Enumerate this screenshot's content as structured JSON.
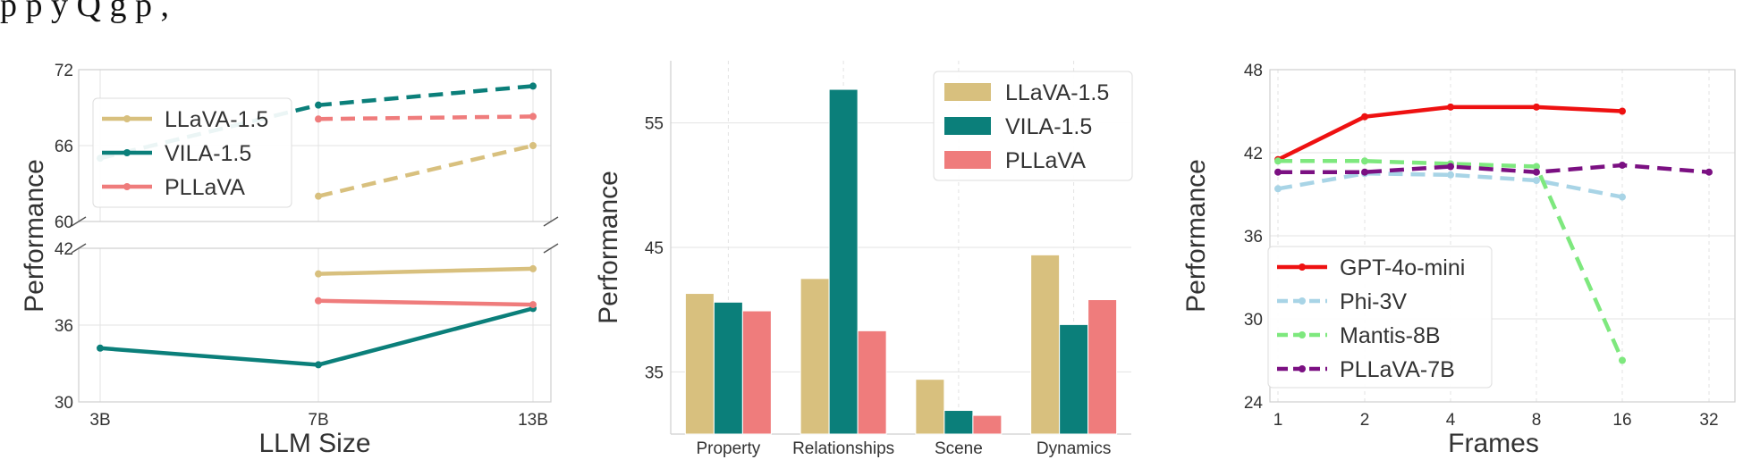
{
  "header_text": "p                p      y                      Q                          g                     p          ,",
  "chart_data": [
    {
      "type": "line",
      "title": "",
      "xlabel": "LLM Size",
      "ylabel": "Performance",
      "categories": [
        "3B",
        "7B",
        "13B"
      ],
      "broken_axis": true,
      "ylim_top": [
        60,
        72
      ],
      "ylim_bottom": [
        30,
        42
      ],
      "yticks_top": [
        "72",
        "66",
        "60"
      ],
      "yticks_bottom": [
        "42",
        "36",
        "30"
      ],
      "legend_position": "upper-left",
      "grid": true,
      "series": [
        {
          "name": "LLaVA-1.5",
          "color": "#d8c07e",
          "solid_values": [
            null,
            40.0,
            40.4
          ],
          "dashed_values": [
            null,
            62.0,
            66.0
          ]
        },
        {
          "name": "VILA-1.5",
          "color": "#0b7f7a",
          "solid_values": [
            34.2,
            32.9,
            37.3
          ],
          "dashed_values": [
            65.0,
            69.2,
            70.7
          ]
        },
        {
          "name": "PLLaVA",
          "color": "#ef7c7c",
          "solid_values": [
            null,
            37.9,
            37.6
          ],
          "dashed_values": [
            null,
            68.1,
            68.3
          ]
        }
      ]
    },
    {
      "type": "bar",
      "title": "",
      "xlabel": "",
      "ylabel": "Performance",
      "categories": [
        "Property",
        "Relationships",
        "Scene",
        "Dynamics"
      ],
      "ylim": [
        30,
        60
      ],
      "yticks": [
        "35",
        "45",
        "55"
      ],
      "legend_position": "upper-right",
      "grid": true,
      "series": [
        {
          "name": "LLaVA-1.5",
          "color": "#d8c07e",
          "values": [
            41.3,
            42.5,
            34.4,
            44.4
          ]
        },
        {
          "name": "VILA-1.5",
          "color": "#0b7f7a",
          "values": [
            40.6,
            57.7,
            31.9,
            38.8
          ]
        },
        {
          "name": "PLLaVA",
          "color": "#ef7c7c",
          "values": [
            39.9,
            38.3,
            31.5,
            40.8
          ]
        }
      ]
    },
    {
      "type": "line",
      "title": "",
      "xlabel": "Frames",
      "ylabel": "Performance",
      "categories": [
        "1",
        "2",
        "4",
        "8",
        "16",
        "32"
      ],
      "ylim": [
        24,
        48
      ],
      "yticks": [
        "48",
        "42",
        "36",
        "30",
        "24"
      ],
      "legend_position": "lower-left",
      "grid": true,
      "series": [
        {
          "name": "GPT-4o-mini",
          "color": "#ee1111",
          "style": "solid",
          "values": [
            41.5,
            44.6,
            45.3,
            45.3,
            45.0,
            null
          ]
        },
        {
          "name": "Phi-3V",
          "color": "#a8d4e6",
          "style": "dashed",
          "values": [
            39.4,
            40.5,
            40.4,
            40.0,
            38.8,
            null
          ]
        },
        {
          "name": "Mantis-8B",
          "color": "#7ee87e",
          "style": "dashed",
          "values": [
            41.4,
            41.4,
            41.2,
            41.0,
            27.0,
            null
          ]
        },
        {
          "name": "PLLaVA-7B",
          "color": "#7b1082",
          "style": "dashed",
          "values": [
            40.6,
            40.6,
            41.0,
            40.6,
            41.1,
            40.6
          ]
        }
      ]
    }
  ]
}
